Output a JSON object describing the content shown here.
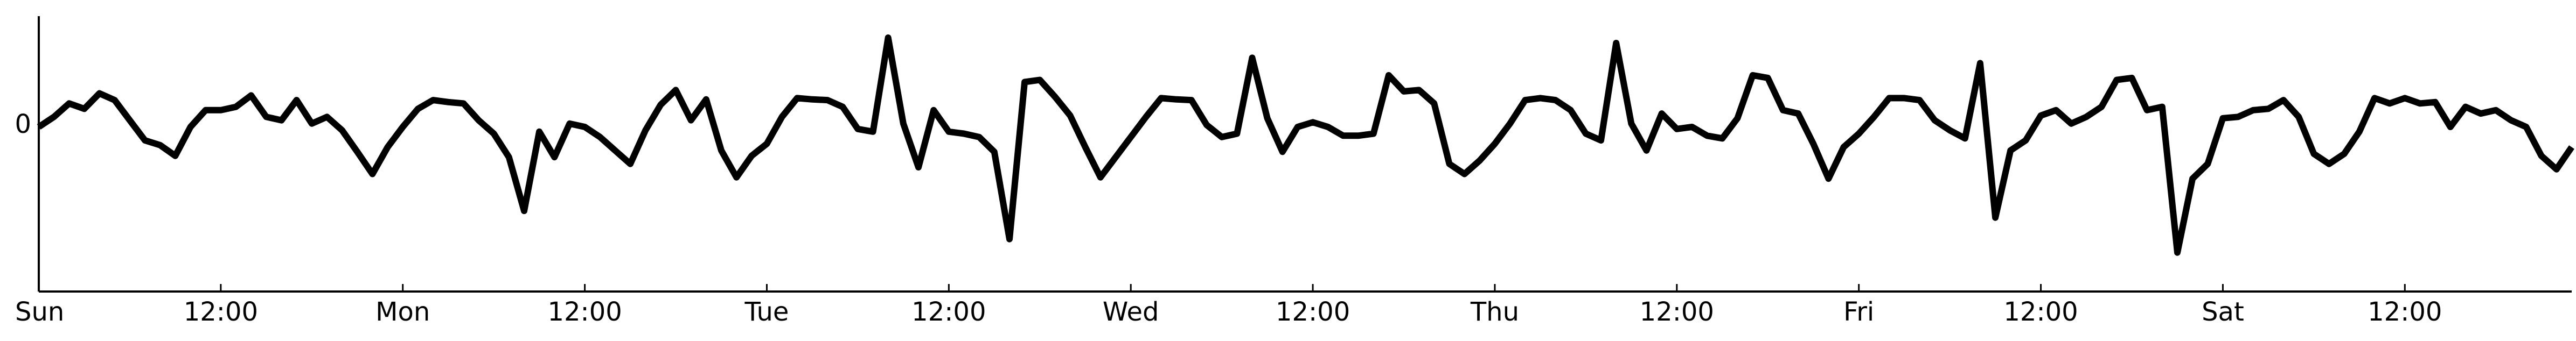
{
  "chart_data": {
    "type": "line",
    "title": "",
    "xlabel": "",
    "ylabel": "",
    "xlim": [
      0,
      167
    ],
    "ylim": [
      -2.5,
      1.6
    ],
    "grid": false,
    "legend": "none",
    "x_ticks": [
      {
        "x": 0,
        "label": "Sun"
      },
      {
        "x": 12,
        "label": "12:00"
      },
      {
        "x": 24,
        "label": "Mon"
      },
      {
        "x": 36,
        "label": "12:00"
      },
      {
        "x": 48,
        "label": "Tue"
      },
      {
        "x": 60,
        "label": "12:00"
      },
      {
        "x": 72,
        "label": "Wed"
      },
      {
        "x": 84,
        "label": "12:00"
      },
      {
        "x": 96,
        "label": "Thu"
      },
      {
        "x": 108,
        "label": "12:00"
      },
      {
        "x": 120,
        "label": "Fri"
      },
      {
        "x": 132,
        "label": "12:00"
      },
      {
        "x": 144,
        "label": "Sat"
      },
      {
        "x": 156,
        "label": "12:00"
      }
    ],
    "y_ticks": [
      {
        "y": 0,
        "label": "0"
      }
    ],
    "series": [
      {
        "color": "#000000",
        "x": [
          0,
          1,
          2,
          3,
          4,
          5,
          6,
          7,
          8,
          9,
          10,
          11,
          12,
          13,
          14,
          15,
          16,
          17,
          18,
          19,
          20,
          21,
          22,
          23,
          24,
          25,
          26,
          27,
          28,
          29,
          30,
          31,
          32,
          33,
          34,
          35,
          36,
          37,
          38,
          39,
          40,
          41,
          42,
          43,
          44,
          45,
          46,
          47,
          48,
          49,
          50,
          51,
          52,
          53,
          54,
          55,
          56,
          57,
          58,
          59,
          60,
          61,
          62,
          63,
          64,
          65,
          66,
          67,
          68,
          69,
          70,
          71,
          72,
          73,
          74,
          75,
          76,
          77,
          78,
          79,
          80,
          81,
          82,
          83,
          84,
          85,
          86,
          87,
          88,
          89,
          90,
          91,
          92,
          93,
          94,
          95,
          96,
          97,
          98,
          99,
          100,
          101,
          102,
          103,
          104,
          105,
          106,
          107,
          108,
          109,
          110,
          111,
          112,
          113,
          114,
          115,
          116,
          117,
          118,
          119,
          120,
          121,
          122,
          123,
          124,
          125,
          126,
          127,
          128,
          129,
          130,
          131,
          132,
          133,
          134,
          135,
          136,
          137,
          138,
          139,
          140,
          141,
          142,
          143,
          144,
          145,
          146,
          147,
          148,
          149,
          150,
          151,
          152,
          153,
          154,
          155,
          156,
          157,
          158,
          159,
          160,
          161,
          162,
          163,
          164,
          165,
          166,
          167
        ],
        "y": [
          -0.05,
          0.1,
          0.3,
          0.22,
          0.45,
          0.35,
          0.05,
          -0.25,
          -0.32,
          -0.48,
          -0.05,
          0.2,
          0.2,
          0.25,
          0.42,
          0.1,
          0.05,
          0.35,
          0.0,
          0.1,
          -0.1,
          -0.42,
          -0.75,
          -0.35,
          -0.05,
          0.22,
          0.35,
          0.32,
          0.3,
          0.05,
          -0.15,
          -0.5,
          -1.3,
          -0.12,
          -0.5,
          0.0,
          -0.05,
          -0.2,
          -0.4,
          -0.6,
          -0.1,
          0.28,
          0.5,
          0.05,
          0.36,
          -0.4,
          -0.8,
          -0.48,
          -0.3,
          0.1,
          0.38,
          0.36,
          0.35,
          0.25,
          -0.08,
          -0.12,
          1.28,
          0.0,
          -0.65,
          0.2,
          -0.12,
          -0.15,
          -0.2,
          -0.42,
          -1.72,
          0.62,
          0.65,
          0.4,
          0.12,
          -0.35,
          -0.8,
          -0.5,
          -0.2,
          0.1,
          0.38,
          0.36,
          0.35,
          -0.02,
          -0.2,
          -0.15,
          0.98,
          0.08,
          -0.42,
          -0.05,
          0.02,
          -0.05,
          -0.18,
          -0.18,
          -0.15,
          0.72,
          0.48,
          0.5,
          0.3,
          -0.6,
          -0.75,
          -0.55,
          -0.3,
          0.0,
          0.35,
          0.38,
          0.35,
          0.2,
          -0.15,
          -0.25,
          1.2,
          0.0,
          -0.4,
          0.15,
          -0.08,
          -0.05,
          -0.18,
          -0.22,
          0.08,
          0.72,
          0.68,
          0.2,
          0.15,
          -0.3,
          -0.82,
          -0.35,
          -0.15,
          0.1,
          0.38,
          0.38,
          0.35,
          0.05,
          -0.1,
          -0.22,
          0.9,
          -1.4,
          -0.4,
          -0.25,
          0.12,
          0.2,
          0.0,
          0.1,
          0.25,
          0.65,
          0.68,
          0.2,
          0.25,
          -1.92,
          -0.82,
          -0.6,
          0.08,
          0.1,
          0.2,
          0.22,
          0.35,
          0.1,
          -0.45,
          -0.6,
          -0.45,
          -0.12,
          0.38,
          0.3,
          0.38,
          0.3,
          0.32,
          -0.05,
          0.25,
          0.15,
          0.2,
          0.05,
          -0.05,
          -0.48,
          -0.68,
          -0.35
        ]
      }
    ]
  }
}
